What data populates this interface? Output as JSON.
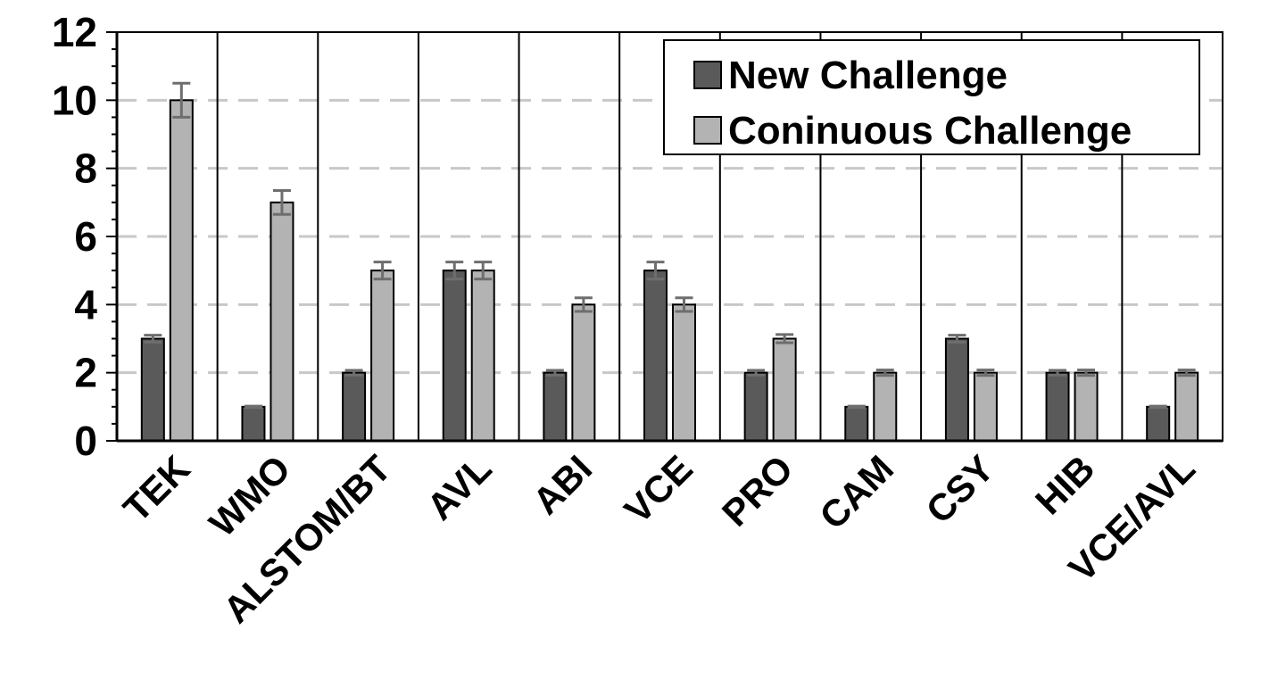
{
  "chart_data": {
    "type": "bar",
    "title": "",
    "xlabel": "",
    "ylabel": "",
    "ylim": [
      0,
      12
    ],
    "yticks": [
      0,
      2,
      4,
      6,
      8,
      10,
      12
    ],
    "grid": "horizontal dashed",
    "legend_position": "top-right",
    "categories": [
      "TEK",
      "WMO",
      "ALSTOM/BT",
      "AVL",
      "ABI",
      "VCE",
      "PRO",
      "CAM",
      "CSY",
      "HIB",
      "VCE/AVL"
    ],
    "series": [
      {
        "name": "New Challenge",
        "color": "#5a5a5a",
        "values": [
          3,
          1,
          2,
          5,
          2,
          5,
          2,
          1,
          3,
          2,
          1
        ],
        "error": [
          0.1,
          0.02,
          0.07,
          0.25,
          0.07,
          0.25,
          0.07,
          0.02,
          0.1,
          0.07,
          0.02
        ]
      },
      {
        "name": "Coninuous Challenge",
        "color": "#b3b3b3",
        "values": [
          10,
          7,
          5,
          5,
          4,
          4,
          3,
          2,
          2,
          2,
          2
        ],
        "error": [
          0.5,
          0.35,
          0.25,
          0.25,
          0.2,
          0.2,
          0.12,
          0.08,
          0.08,
          0.08,
          0.08
        ]
      }
    ]
  }
}
